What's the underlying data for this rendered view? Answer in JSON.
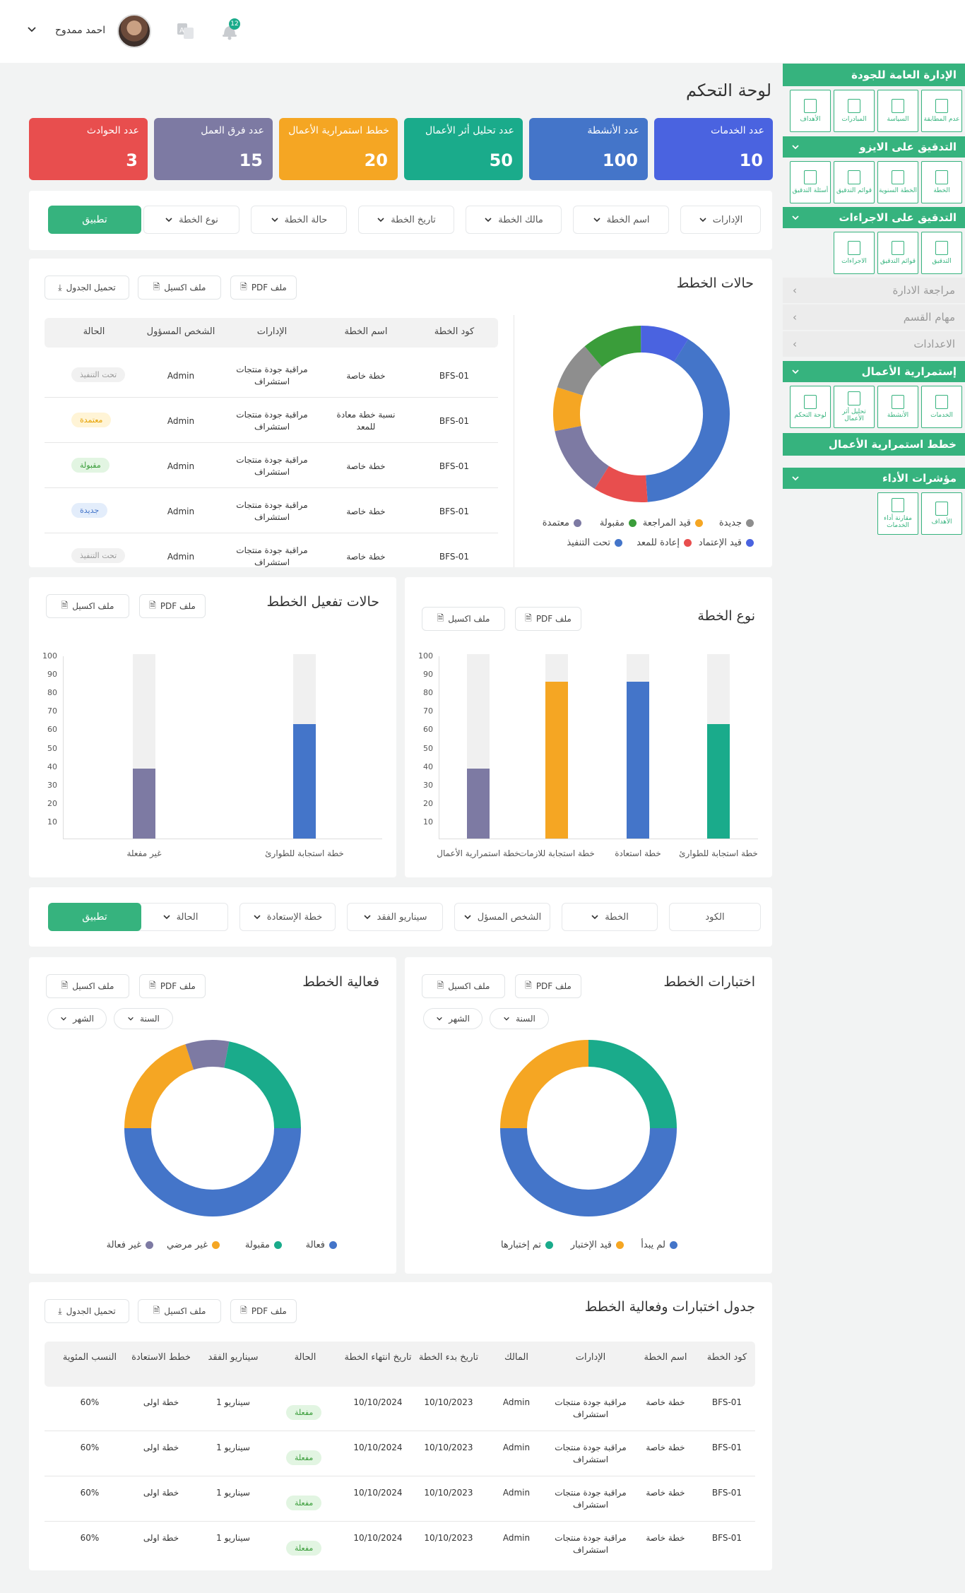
{
  "header": {
    "user_name": "احمد ممدوح",
    "notification_count": "12"
  },
  "page": {
    "title": "لوحة التحكم"
  },
  "stats": [
    {
      "label": "عدد الخدمات",
      "value": "10",
      "color": "#4a63e0"
    },
    {
      "label": "عدد الأنشطة",
      "value": "100",
      "color": "#4475c9"
    },
    {
      "label": "عدد تحليل أثر الأعمال",
      "value": "50",
      "color": "#1aab8b"
    },
    {
      "label": "خطط استمرارية الأعمال",
      "value": "20",
      "color": "#f5a623"
    },
    {
      "label": "عدد فرق العمل",
      "value": "15",
      "color": "#7d7aa3"
    },
    {
      "label": "عدد الحوادث",
      "value": "3",
      "color": "#e84e4e"
    }
  ],
  "filters1": {
    "items": [
      "الإدارات",
      "اسم الخطة",
      "مالك الخطة",
      "تاريخ الخطة",
      "حالة الخطة",
      "نوع الخطة"
    ],
    "apply": "تطبيق"
  },
  "plan_status": {
    "title": "حالات الخطط",
    "buttons": {
      "pdf": "ملف PDF",
      "excel": "ملف اكسيل",
      "download": "تحميل الجدول"
    },
    "headers": [
      "كود الخطة",
      "اسم الخطة",
      "الإدارات",
      "الشخص المسؤول",
      "الحالة"
    ],
    "rows": [
      {
        "code": "BFS-01",
        "name": "خطة خاصة",
        "dept": "مراقبة جودة منتجات استشراف",
        "owner": "Admin",
        "status": "تحت التنفيذ"
      },
      {
        "code": "BFS-01",
        "name": "نسبة خطة معادة للمعد",
        "dept": "مراقبة جودة منتجات استشراف",
        "owner": "Admin",
        "status": "معتمدة"
      },
      {
        "code": "BFS-01",
        "name": "خطة خاصة",
        "dept": "مراقبة جودة منتجات استشراف",
        "owner": "Admin",
        "status": "مقبولة"
      },
      {
        "code": "BFS-01",
        "name": "خطة خاصة",
        "dept": "مراقبة جودة منتجات استشراف",
        "owner": "Admin",
        "status": "جديدة"
      },
      {
        "code": "BFS-01",
        "name": "خطة خاصة",
        "dept": "مراقبة جودة منتجات استشراف",
        "owner": "Admin",
        "status": "تحت التنفيذ"
      }
    ],
    "legend": [
      "جديدة",
      "قيد المراجعة",
      "مقبولة",
      "معتمدة",
      "قيد الإعتماد",
      "إعادة للمعد",
      "تحت التنفيذ"
    ]
  },
  "chart_data": [
    {
      "type": "pie",
      "title": "حالات الخطط",
      "categories": [
        "قيد الإعتماد",
        "إعادة للمعد",
        "معتمدة",
        "قيد المراجعة",
        "جديدة",
        "مقبولة",
        "تحت التنفيذ"
      ],
      "values": [
        40,
        10,
        13,
        8,
        9,
        11,
        9
      ],
      "colors": [
        "#4475c9",
        "#e84e4e",
        "#7d7aa3",
        "#f5a623",
        "#8e8e8e",
        "#3a9d3a",
        "#4a63e0"
      ]
    },
    {
      "type": "bar",
      "title": "نوع الخطة",
      "categories": [
        "خطة استجابة للطوارئ",
        "خطة استعادة",
        "خطة استجابة للازمات",
        "خطة استمرارية الأعمال"
      ],
      "values": [
        62,
        85,
        85,
        38
      ],
      "colors": [
        "#1aab8b",
        "#4475c9",
        "#f5a623",
        "#7d7aa3"
      ],
      "ylim": [
        0,
        100
      ]
    },
    {
      "type": "bar",
      "title": "حالات تفعيل الخطط",
      "categories": [
        "خطة استجابة للطوارئ",
        "غير مفعلة"
      ],
      "values": [
        62,
        38
      ],
      "colors": [
        "#4475c9",
        "#7d7aa3"
      ],
      "ylim": [
        0,
        100
      ]
    },
    {
      "type": "pie",
      "title": "اختبارات الخطط",
      "categories": [
        "لم يبدأ",
        "قيد الإختبار",
        "تم إختبارها"
      ],
      "values": [
        50,
        25,
        25
      ],
      "colors": [
        "#4475c9",
        "#f5a623",
        "#1aab8b"
      ]
    },
    {
      "type": "pie",
      "title": "فعالية الخطط",
      "categories": [
        "فعالة",
        "غير مرضي",
        "غير فعالة",
        "مقبولة"
      ],
      "values": [
        50,
        20,
        8,
        22
      ],
      "colors": [
        "#4475c9",
        "#f5a623",
        "#7d7aa3",
        "#1aab8b"
      ]
    }
  ],
  "axis_ticks": [
    "100",
    "90",
    "80",
    "70",
    "60",
    "50",
    "40",
    "30",
    "20",
    "10"
  ],
  "plan_type": {
    "title": "نوع الخطة",
    "xlabels": [
      "خطة استجابة للطوارئ",
      "خطة استعادة",
      "خطة استجابة للازمات",
      "خطة استمرارية الأعمال"
    ]
  },
  "plan_activation": {
    "title": "حالات تفعيل الخطط",
    "xlabels": [
      "خطة استجابة للطوارئ",
      "غير مفعلة"
    ]
  },
  "filters2": {
    "items": [
      "الكود",
      "الخطة",
      "الشخص المسؤل",
      "سيناريو الفقد",
      "خطة الإستعادة",
      "الحالة"
    ],
    "apply": "تطبيق"
  },
  "plan_tests": {
    "title": "اختبارات الخطط",
    "year": "السنة",
    "month": "الشهر",
    "legend": [
      "لم يبدأ",
      "قيد الإختبار",
      "تم إختبارها"
    ]
  },
  "plan_effectiveness": {
    "title": "فعالية الخطط",
    "year": "السنة",
    "month": "الشهر",
    "legend": [
      "فعالة",
      "مقبولة",
      "غير مرضي",
      "غير فعالة"
    ]
  },
  "tests_table": {
    "title": "جدول اختبارات وفعالية الخطط",
    "headers": [
      "كود الخطة",
      "اسم الخطة",
      "الإدارات",
      "المالك",
      "تاريخ بدء الخطة",
      "تاريخ انتهاء الخطة",
      "الحالة",
      "سيناريو الفقد",
      "خطط الاستعادة",
      "النسب المئوية"
    ],
    "rows": [
      {
        "code": "BFS-01",
        "name": "خطة خاصة",
        "dept": "مراقبة جودة منتجات استشراف",
        "owner": "Admin",
        "start": "10/10/2023",
        "end": "10/10/2024",
        "status": "مفعلة",
        "scenario": "سيناريو 1",
        "recovery": "خطة اولى",
        "pct": "60%"
      },
      {
        "code": "BFS-01",
        "name": "خطة خاصة",
        "dept": "مراقبة جودة منتجات استشراف",
        "owner": "Admin",
        "start": "10/10/2023",
        "end": "10/10/2024",
        "status": "مفعلة",
        "scenario": "سيناريو 1",
        "recovery": "خطة اولى",
        "pct": "60%"
      },
      {
        "code": "BFS-01",
        "name": "خطة خاصة",
        "dept": "مراقبة جودة منتجات استشراف",
        "owner": "Admin",
        "start": "10/10/2023",
        "end": "10/10/2024",
        "status": "مفعلة",
        "scenario": "سيناريو 1",
        "recovery": "خطة اولى",
        "pct": "60%"
      },
      {
        "code": "BFS-01",
        "name": "خطة خاصة",
        "dept": "مراقبة جودة منتجات استشراف",
        "owner": "Admin",
        "start": "10/10/2023",
        "end": "10/10/2024",
        "status": "مفعلة",
        "scenario": "سيناريو 1",
        "recovery": "خطة اولى",
        "pct": "60%"
      }
    ]
  },
  "sidebar": {
    "s1": {
      "title": "الإدارة العامة للجودة",
      "tiles": [
        "عدم المطابقة",
        "السياسة",
        "المبادرات",
        "الأهداف"
      ]
    },
    "s2": {
      "title": "التدقيق على الايزو",
      "tiles": [
        "الخطة",
        "الخطة السنوية",
        "قوائم التدقيق",
        "أسئلة التدقيق"
      ]
    },
    "s3": {
      "title": "التدقيق على الاجراءات",
      "tiles": [
        "التدقيق",
        "قوائم التدقيق",
        "الاجراءات"
      ]
    },
    "grey": [
      "مراجعة الادارة",
      "مهام القسم",
      "الاعدادات"
    ],
    "s4": {
      "title": "إستمرارية الأعمال",
      "tiles": [
        "الخدمات",
        "الأنشطة",
        "تحليل أثر الأعمال",
        "لوحة التحكم"
      ]
    },
    "s5": {
      "title": "خطط استمرارية الأعمال"
    },
    "s6": {
      "title": "مؤشرات الأداء",
      "tiles": [
        "الأهداف",
        "مقارنة أداء الخدمات"
      ]
    }
  }
}
